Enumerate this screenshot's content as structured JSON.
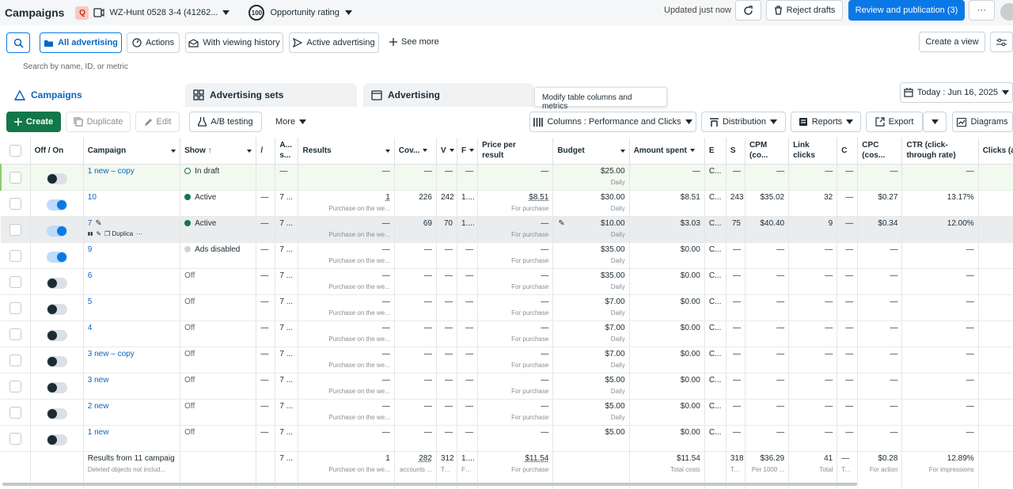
{
  "topbar": {
    "title": "Campaigns",
    "account_badge": "Q",
    "account_name": "WZ-Hunt 0528 3-4 (41262...",
    "rating_value": "100",
    "rating_label": "Opportunity rating",
    "updated": "Updated just now",
    "reject_label": "Reject drafts",
    "review_label": "Review and publication (3)",
    "more_label": "···"
  },
  "filterbar": {
    "all_advertising": "All advertising",
    "actions": "Actions",
    "viewing_history": "With viewing history",
    "active_advertising": "Active advertising",
    "see_more": "See more",
    "create_view": "Create a view"
  },
  "search": {
    "placeholder": "Search by name, ID, or metric"
  },
  "tabs": {
    "campaigns": "Campaigns",
    "ad_sets": "Advertising sets",
    "ads": "Advertising",
    "tooltip": "Modify table columns and metrics",
    "date": "Today : Jun 16, 2025"
  },
  "toolbar": {
    "create": "Create",
    "duplicate": "Duplicate",
    "edit": "Edit",
    "ab_testing": "A/B testing",
    "more": "More",
    "columns": "Columns : Performance and Clicks",
    "distribution": "Distribution",
    "reports": "Reports",
    "export": "Export",
    "diagrams": "Diagrams"
  },
  "table": {
    "headers": {
      "offon": "Off / On",
      "campaign": "Campaign",
      "show": "Show",
      "c_a": "/",
      "c_b1": "A...",
      "c_b2": "s...",
      "results": "Results",
      "coverage": "Cov...",
      "c_v": "V",
      "c_f": "F",
      "price1": "Price per",
      "price2": "result",
      "budget": "Budget",
      "spent": "Amount spent",
      "c_e": "E",
      "c_s": "S",
      "cpm1": "CPM",
      "cpm2": "(co...",
      "link1": "Link",
      "link2": "clicks",
      "c_r": "C",
      "cpc1": "CPC",
      "cpc2": "(cos...",
      "ctr1": "CTR (click-",
      "ctr2": "through rate)",
      "clicks": "Clicks (all)"
    },
    "rows": [
      {
        "name": "1 new – copy",
        "on": false,
        "status": "In draft",
        "status_type": "draft",
        "a": "",
        "b": "—",
        "result": "—",
        "result_sub": "",
        "cov": "—",
        "v": "—",
        "f": "—",
        "price": "—",
        "price_sub": "",
        "budget": "$25.00",
        "budget_sub": "Daily",
        "spent": "—",
        "e": "C...",
        "s": "—",
        "cpm": "—",
        "link": "—",
        "r": "—",
        "cpc": "—",
        "ctr": "—",
        "clicks": ""
      },
      {
        "name": "10",
        "on": true,
        "status": "Active",
        "status_type": "active",
        "a": "—",
        "b": "7 ...",
        "result": "1",
        "result_sub": "Purchase on the we...",
        "cov": "226",
        "v": "242",
        "f": "1....",
        "price": "$8.51",
        "price_sub": "For purchase",
        "budget": "$30.00",
        "budget_sub": "Daily",
        "spent": "$8.51",
        "e": "C...",
        "s": "243",
        "cpm": "$35.02",
        "link": "32",
        "r": "—",
        "cpc": "$0.27",
        "ctr": "13.17%",
        "clicks": ""
      },
      {
        "name": "7",
        "on": true,
        "status": "Active",
        "status_type": "active",
        "a": "—",
        "b": "7 ...",
        "result": "—",
        "result_sub": "Purchase on the we...",
        "cov": "69",
        "v": "70",
        "f": "1....",
        "price": "—",
        "price_sub": "For purchase",
        "budget": "$10.00",
        "budget_sub": "Daily",
        "spent": "$3.03",
        "e": "C...",
        "s": "75",
        "cpm": "$40.40",
        "link": "9",
        "r": "—",
        "cpc": "$0.34",
        "ctr": "12.00%",
        "clicks": "",
        "tools": "Duplica"
      },
      {
        "name": "9",
        "on": true,
        "status": "Ads disabled",
        "status_type": "disabled",
        "a": "—",
        "b": "7 ...",
        "result": "—",
        "result_sub": "Purchase on the we...",
        "cov": "—",
        "v": "—",
        "f": "—",
        "price": "—",
        "price_sub": "For purchase",
        "budget": "$35.00",
        "budget_sub": "Daily",
        "spent": "$0.00",
        "e": "C...",
        "s": "—",
        "cpm": "—",
        "link": "—",
        "r": "—",
        "cpc": "—",
        "ctr": "—",
        "clicks": ""
      },
      {
        "name": "6",
        "on": false,
        "status": "Off",
        "status_type": "off",
        "a": "—",
        "b": "7 ...",
        "result": "—",
        "result_sub": "Purchase on the we...",
        "cov": "—",
        "v": "—",
        "f": "—",
        "price": "—",
        "price_sub": "For purchase",
        "budget": "$35.00",
        "budget_sub": "Daily",
        "spent": "$0.00",
        "e": "C...",
        "s": "—",
        "cpm": "—",
        "link": "—",
        "r": "—",
        "cpc": "—",
        "ctr": "—",
        "clicks": ""
      },
      {
        "name": "5",
        "on": false,
        "status": "Off",
        "status_type": "off",
        "a": "—",
        "b": "7 ...",
        "result": "—",
        "result_sub": "Purchase on the we...",
        "cov": "—",
        "v": "—",
        "f": "—",
        "price": "—",
        "price_sub": "For purchase",
        "budget": "$7.00",
        "budget_sub": "Daily",
        "spent": "$0.00",
        "e": "C...",
        "s": "—",
        "cpm": "—",
        "link": "—",
        "r": "—",
        "cpc": "—",
        "ctr": "—",
        "clicks": ""
      },
      {
        "name": "4",
        "on": false,
        "status": "Off",
        "status_type": "off",
        "a": "—",
        "b": "7 ...",
        "result": "—",
        "result_sub": "Purchase on the we...",
        "cov": "—",
        "v": "—",
        "f": "—",
        "price": "—",
        "price_sub": "For purchase",
        "budget": "$7.00",
        "budget_sub": "Daily",
        "spent": "$0.00",
        "e": "C...",
        "s": "—",
        "cpm": "—",
        "link": "—",
        "r": "—",
        "cpc": "—",
        "ctr": "—",
        "clicks": ""
      },
      {
        "name": "3 new – copy",
        "on": false,
        "status": "Off",
        "status_type": "off",
        "a": "—",
        "b": "7 ...",
        "result": "—",
        "result_sub": "Purchase on the we...",
        "cov": "—",
        "v": "—",
        "f": "—",
        "price": "—",
        "price_sub": "For purchase",
        "budget": "$7.00",
        "budget_sub": "Daily",
        "spent": "$0.00",
        "e": "C...",
        "s": "—",
        "cpm": "—",
        "link": "—",
        "r": "—",
        "cpc": "—",
        "ctr": "—",
        "clicks": ""
      },
      {
        "name": "3 new",
        "on": false,
        "status": "Off",
        "status_type": "off",
        "a": "—",
        "b": "7 ...",
        "result": "—",
        "result_sub": "Purchase on the we...",
        "cov": "—",
        "v": "—",
        "f": "—",
        "price": "—",
        "price_sub": "For purchase",
        "budget": "$5.00",
        "budget_sub": "Daily",
        "spent": "$0.00",
        "e": "C...",
        "s": "—",
        "cpm": "—",
        "link": "—",
        "r": "—",
        "cpc": "—",
        "ctr": "—",
        "clicks": ""
      },
      {
        "name": "2 new",
        "on": false,
        "status": "Off",
        "status_type": "off",
        "a": "—",
        "b": "7 ...",
        "result": "—",
        "result_sub": "Purchase on the we...",
        "cov": "—",
        "v": "—",
        "f": "—",
        "price": "—",
        "price_sub": "For purchase",
        "budget": "$5.00",
        "budget_sub": "Daily",
        "spent": "$0.00",
        "e": "C...",
        "s": "—",
        "cpm": "—",
        "link": "—",
        "r": "—",
        "cpc": "—",
        "ctr": "—",
        "clicks": ""
      },
      {
        "name": "1 new",
        "on": false,
        "status": "Off",
        "status_type": "off",
        "a": "—",
        "b": "7 ...",
        "result": "—",
        "result_sub": "",
        "cov": "—",
        "v": "—",
        "f": "—",
        "price": "—",
        "price_sub": "",
        "budget": "$5.00",
        "budget_sub": "",
        "spent": "$0.00",
        "e": "C...",
        "s": "—",
        "cpm": "—",
        "link": "—",
        "r": "—",
        "cpc": "—",
        "ctr": "—",
        "clicks": ""
      }
    ],
    "summary": {
      "label": "Results from 11 campaig",
      "sublabel": "Deleted objects not includ...",
      "b": "7 ...",
      "result": "1",
      "result_sub": "Purchase on the we...",
      "cov": "282",
      "cov_sub": "accounts ...",
      "v": "312",
      "v_sub": "To...",
      "f": "1....",
      "f_sub": "Fo...",
      "price": "$11.54",
      "price_sub": "For purchase",
      "spent": "$11.54",
      "spent_sub": "Total costs",
      "s": "318",
      "s_sub": "To...",
      "cpm": "$36.29",
      "cpm_sub": "Per 1000 ...",
      "link": "41",
      "link_sub": "Total",
      "r": "—",
      "r_sub": "To...",
      "cpc": "$0.28",
      "cpc_sub": "For action",
      "ctr": "12.89%",
      "ctr_sub": "For impressions"
    }
  }
}
